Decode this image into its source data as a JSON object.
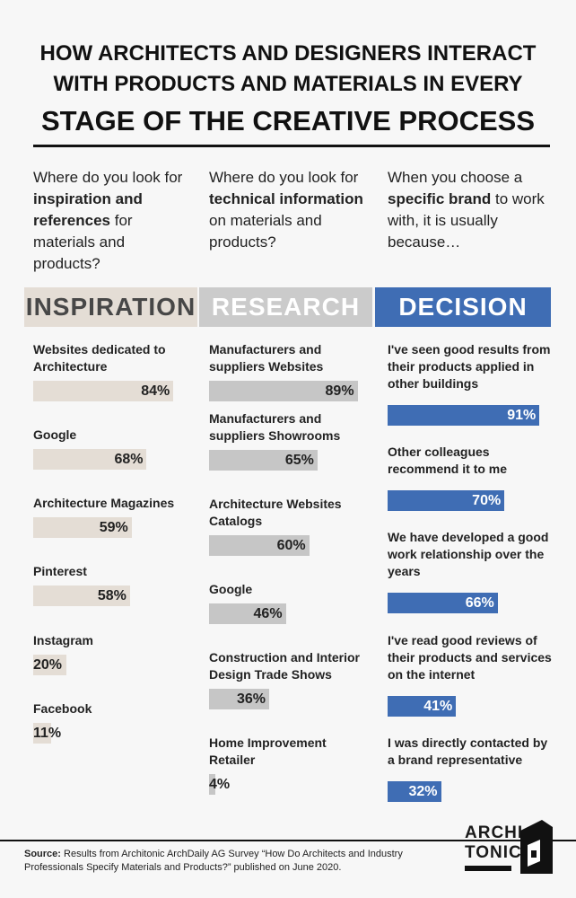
{
  "title_lines": [
    "HOW ARCHITECTS AND DESIGNERS INTERACT",
    "WITH PRODUCTS AND MATERIALS IN EVERY",
    "STAGE OF THE CREATIVE PROCESS"
  ],
  "chart_data": [
    {
      "type": "bar",
      "orientation": "horizontal",
      "title": "INSPIRATION",
      "question": [
        "Where do you look for ",
        "inspiration and references",
        " for materials and products?"
      ],
      "title_background": "#e4ddd5",
      "title_color": "#474747",
      "color": "#e4ddd5",
      "value_label_color": "#222222",
      "categories": [
        "Websites dedicated to Architecture",
        "Google",
        "Architecture Magazines",
        "Pinterest",
        "Instagram",
        "Facebook"
      ],
      "values": [
        84,
        68,
        59,
        58,
        20,
        11
      ],
      "value_labels": [
        "84%",
        "68%",
        "59%",
        "58%",
        "20%",
        "11%"
      ]
    },
    {
      "type": "bar",
      "orientation": "horizontal",
      "title": "RESEARCH",
      "question": [
        "Where do you look for ",
        "technical information",
        " on materials and products?"
      ],
      "title_background": "#cbcbcb",
      "title_color": "#ffffff",
      "color": "#c6c6c6",
      "value_label_color": "#222222",
      "categories": [
        "Manufacturers and suppliers Websites",
        "Manufacturers and suppliers Showrooms",
        "Architecture Websites Catalogs",
        "Google",
        "Construction and Interior Design Trade Shows",
        "Home Improvement Retailer"
      ],
      "values": [
        89,
        65,
        60,
        46,
        36,
        4
      ],
      "value_labels": [
        "89%",
        "65%",
        "60%",
        "46%",
        "36%",
        "4%"
      ]
    },
    {
      "type": "bar",
      "orientation": "horizontal",
      "title": "DECISION",
      "question": [
        "When you choose a ",
        "specific brand",
        " to work with, it is usually because…"
      ],
      "title_background": "#3f6db4",
      "title_color": "#ffffff",
      "color": "#3f6db4",
      "value_label_color": "#ffffff",
      "categories": [
        "I've seen good results from their products applied in other buildings",
        "Other colleagues recommend it to me",
        "We have developed a good work relationship over the years",
        "I've read good reviews of their products and services on the internet",
        "I was directly contacted by a brand representative"
      ],
      "values": [
        91,
        70,
        66,
        41,
        32
      ],
      "value_labels": [
        "91%",
        "70%",
        "66%",
        "41%",
        "32%"
      ]
    }
  ],
  "source": {
    "label": "Source:",
    "text": " Results from Architonic ArchDaily AG Survey “How Do Architects and Industry Professionals Specify Materials and Products?” published on June 2020."
  },
  "logo": [
    "ARCHI",
    "TONIC"
  ]
}
